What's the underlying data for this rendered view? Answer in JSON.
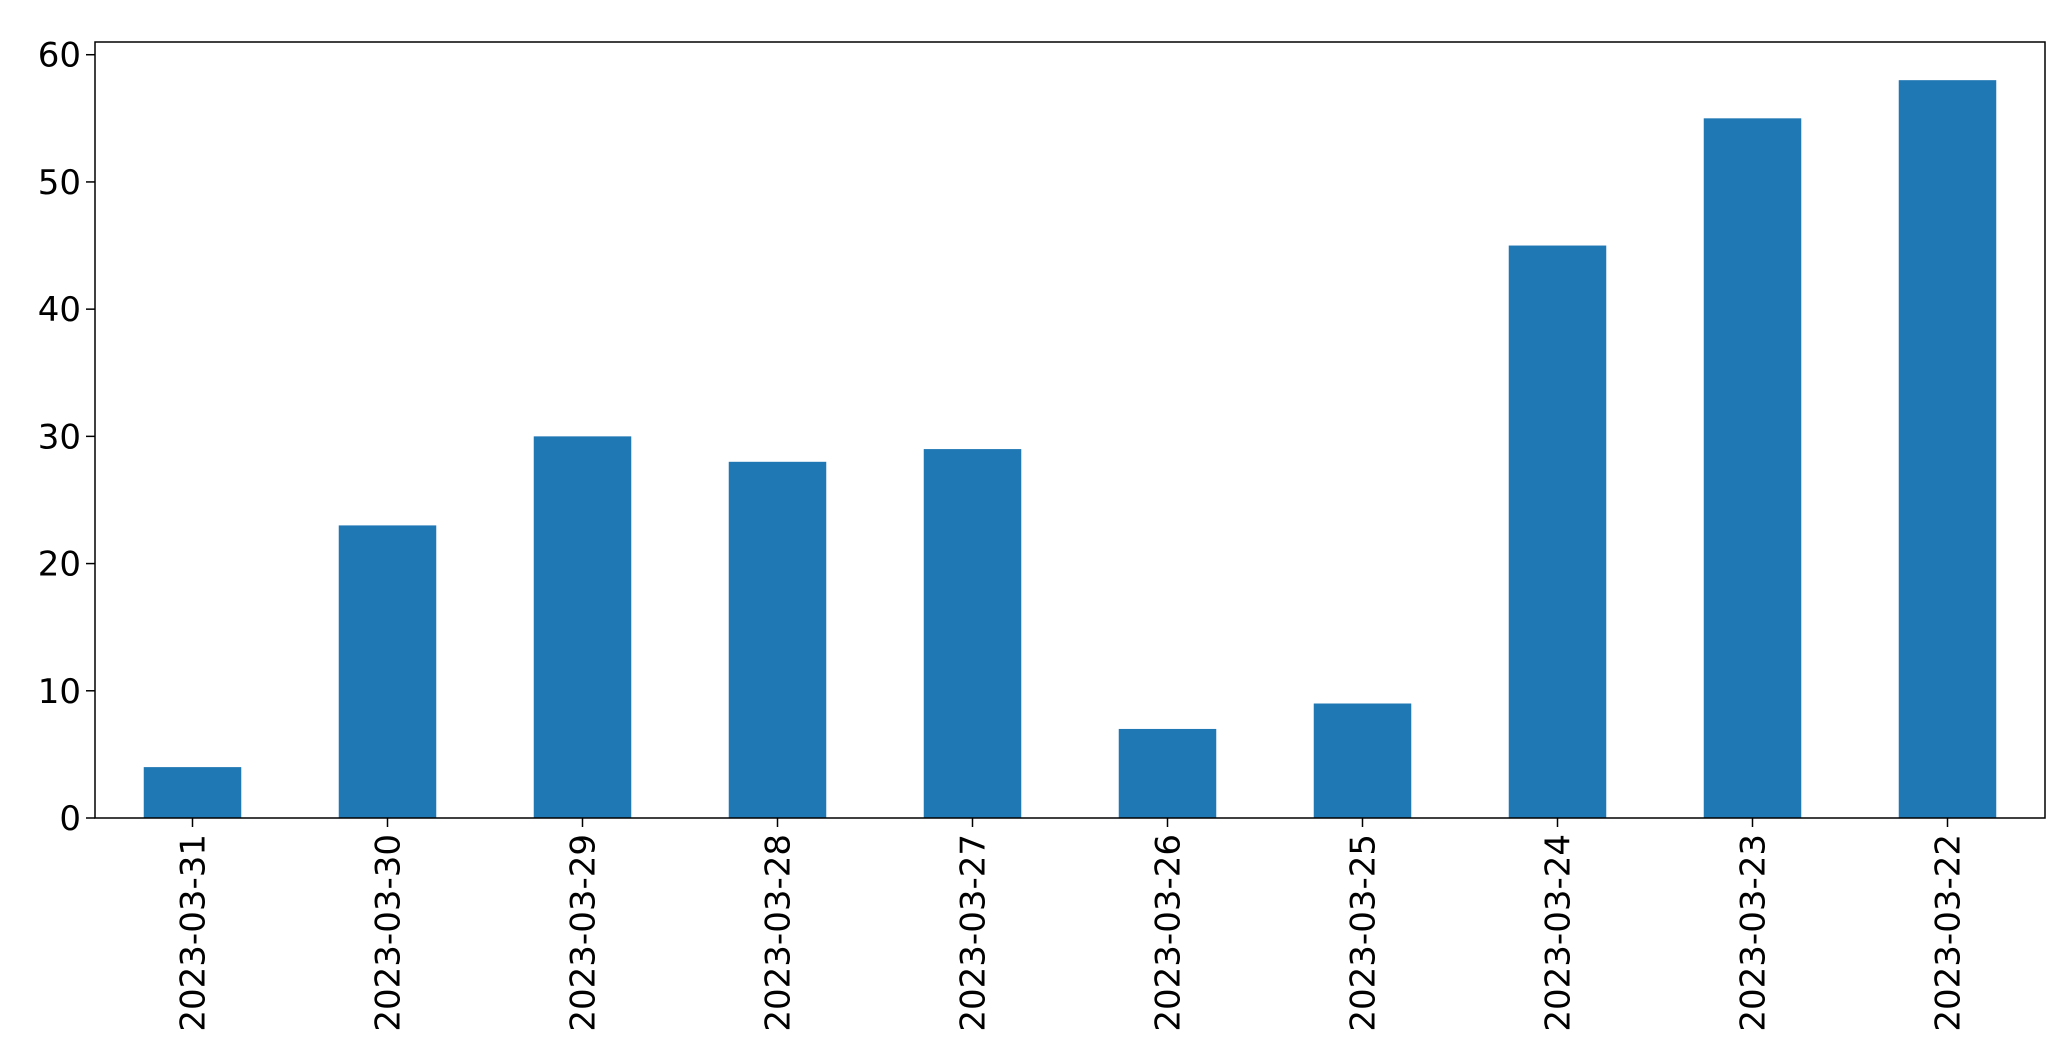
{
  "chart_data": {
    "type": "bar",
    "categories": [
      "2023-03-31",
      "2023-03-30",
      "2023-03-29",
      "2023-03-28",
      "2023-03-27",
      "2023-03-26",
      "2023-03-25",
      "2023-03-24",
      "2023-03-23",
      "2023-03-22"
    ],
    "values": [
      4,
      23,
      30,
      28,
      29,
      7,
      9,
      45,
      55,
      58
    ],
    "title": "",
    "xlabel": "",
    "ylabel": "",
    "ylim": [
      0,
      61
    ],
    "yticks": [
      0,
      10,
      20,
      30,
      40,
      50,
      60
    ],
    "bar_color": "#1f77b4",
    "grid": false,
    "legend": "none"
  }
}
